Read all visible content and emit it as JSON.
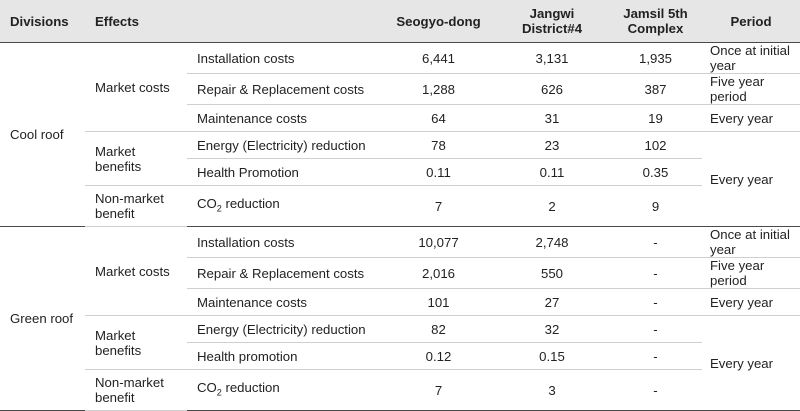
{
  "headers": {
    "divisions": "Divisions",
    "effects": "Effects",
    "col1": "Seogyo-dong",
    "col2_line1": "Jangwi",
    "col2_line2": "District#4",
    "col3_line1": "Jamsil 5th",
    "col3_line2": "Complex",
    "period": "Period"
  },
  "groups": [
    {
      "division": "Cool roof",
      "effects": {
        "market_costs": "Market costs",
        "market_benefits": "Market benefits",
        "non_market_benefit": "Non-market benefit"
      },
      "rows": [
        {
          "item": "Installation costs",
          "v1": "6,441",
          "v2": "3,131",
          "v3": "1,935",
          "period": "Once at initial year"
        },
        {
          "item": "Repair & Replacement costs",
          "v1": "1,288",
          "v2": "626",
          "v3": "387",
          "period": "Five year period"
        },
        {
          "item": "Maintenance costs",
          "v1": "64",
          "v2": "31",
          "v3": "19",
          "period": "Every year"
        },
        {
          "item": "Energy (Electricity) reduction",
          "v1": "78",
          "v2": "23",
          "v3": "102"
        },
        {
          "item": "Health Promotion",
          "v1": "0.11",
          "v2": "0.11",
          "v3": "0.35"
        },
        {
          "item_prefix": "CO",
          "item_sub": "2",
          "item_suffix": " reduction",
          "v1": "7",
          "v2": "2",
          "v3": "9"
        }
      ],
      "merged_period": "Every year"
    },
    {
      "division": "Green roof",
      "effects": {
        "market_costs": "Market costs",
        "market_benefits": "Market benefits",
        "non_market_benefit": "Non-market benefit"
      },
      "rows": [
        {
          "item": "Installation costs",
          "v1": "10,077",
          "v2": "2,748",
          "v3": "-",
          "period": "Once at initial year"
        },
        {
          "item": "Repair & Replacement costs",
          "v1": "2,016",
          "v2": "550",
          "v3": "-",
          "period": "Five year period"
        },
        {
          "item": "Maintenance costs",
          "v1": "101",
          "v2": "27",
          "v3": "-",
          "period": "Every year"
        },
        {
          "item": "Energy (Electricity) reduction",
          "v1": "82",
          "v2": "32",
          "v3": "-"
        },
        {
          "item": "Health promotion",
          "v1": "0.12",
          "v2": "0.15",
          "v3": "-"
        },
        {
          "item_prefix": "CO",
          "item_sub": "2",
          "item_suffix": " reduction",
          "v1": "7",
          "v2": "3",
          "v3": "-"
        }
      ],
      "merged_period": "Every year"
    }
  ]
}
